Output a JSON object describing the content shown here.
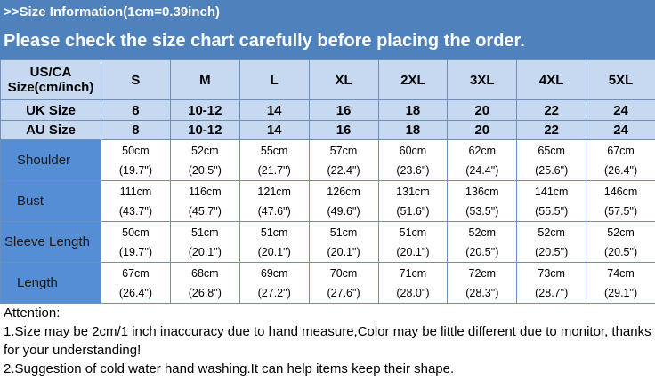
{
  "banner": {
    "subtitle": ">>Size Information(1cm=0.39inch)",
    "headline": "Please check the size chart carefully before placing the order."
  },
  "table": {
    "header_label": [
      "US/CA",
      "Size(cm/inch)"
    ],
    "sizes": [
      "S",
      "M",
      "L",
      "XL",
      "2XL",
      "3XL",
      "4XL",
      "5XL"
    ],
    "uk": {
      "label": "UK Size",
      "values": [
        "8",
        "10-12",
        "14",
        "16",
        "18",
        "20",
        "22",
        "24"
      ]
    },
    "au": {
      "label": "AU Size",
      "values": [
        "8",
        "10-12",
        "14",
        "16",
        "18",
        "20",
        "22",
        "24"
      ]
    },
    "rows": [
      {
        "label": "Shoulder",
        "cm": [
          "50cm",
          "52cm",
          "55cm",
          "57cm",
          "60cm",
          "62cm",
          "65cm",
          "67cm"
        ],
        "inch": [
          "(19.7\")",
          "(20.5\")",
          "(21.7\")",
          "(22.4\")",
          "(23.6\")",
          "(24.4\")",
          "(25.6\")",
          "(26.4\")"
        ]
      },
      {
        "label": "Bust",
        "cm": [
          "111cm",
          "116cm",
          "121cm",
          "126cm",
          "131cm",
          "136cm",
          "141cm",
          "146cm"
        ],
        "inch": [
          "(43.7\")",
          "(45.7\")",
          "(47.6\")",
          "(49.6\")",
          "(51.6\")",
          "(53.5\")",
          "(55.5\")",
          "(57.5\")"
        ]
      },
      {
        "label": "Sleeve Length",
        "cm": [
          "50cm",
          "51cm",
          "51cm",
          "51cm",
          "51cm",
          "52cm",
          "52cm",
          "52cm"
        ],
        "inch": [
          "(19.7\")",
          "(20.1\")",
          "(20.1\")",
          "(20.1\")",
          "(20.1\")",
          "(20.5\")",
          "(20.5\")",
          "(20.5\")"
        ]
      },
      {
        "label": "Length",
        "cm": [
          "67cm",
          "68cm",
          "69cm",
          "70cm",
          "71cm",
          "72cm",
          "73cm",
          "74cm"
        ],
        "inch": [
          "(26.4\")",
          "(26.8\")",
          "(27.2\")",
          "(27.6\")",
          "(28.0\")",
          "(28.3\")",
          "(28.7\")",
          "(29.1\")"
        ]
      }
    ]
  },
  "attention": {
    "title": "Attention:",
    "line1": "1.Size may be 2cm/1 inch inaccuracy due to hand measure,Color may be little different due to monitor, thanks for your understanding!",
    "line2": "2.Suggestion of cold water hand washing.It can help items keep their shape."
  },
  "colors": {
    "banner": "#4f81bd",
    "header_cell": "#c6d9f1",
    "label_cell": "#558ed5"
  }
}
